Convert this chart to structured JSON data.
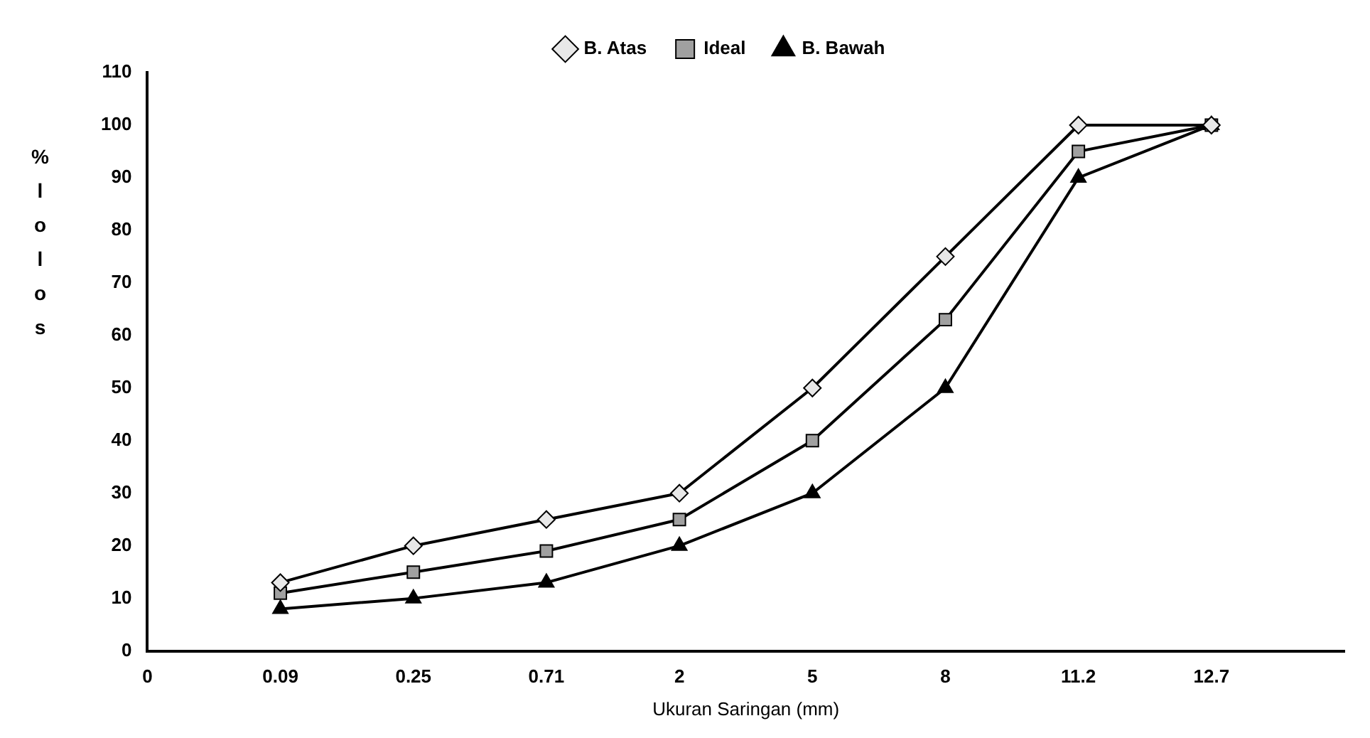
{
  "chart_data": {
    "type": "line",
    "xlabel": "Ukuran Saringan (mm)",
    "ylabel": "% lolos",
    "categories": [
      "0",
      "0.09",
      "0.25",
      "0.71",
      "2",
      "5",
      "8",
      "11.2",
      "12.7",
      null
    ],
    "series": [
      {
        "name": "B. Atas",
        "color": "#000000",
        "marker": "diamond",
        "values": [
          null,
          13,
          20,
          25,
          30,
          50,
          75,
          100,
          100,
          null
        ]
      },
      {
        "name": "Ideal",
        "color": "#000000",
        "marker": "square",
        "values": [
          null,
          11,
          15,
          19,
          25,
          40,
          63,
          95,
          100,
          null
        ]
      },
      {
        "name": "B. Bawah",
        "color": "#000000",
        "marker": "triangle",
        "values": [
          null,
          8,
          10,
          13,
          20,
          30,
          50,
          90,
          100,
          null
        ]
      }
    ],
    "ylim": [
      0,
      110
    ],
    "yticks": [
      0,
      10,
      20,
      30,
      40,
      50,
      60,
      70,
      80,
      90,
      100,
      110
    ],
    "grid": false,
    "legend": "top",
    "line_style": "solid"
  }
}
